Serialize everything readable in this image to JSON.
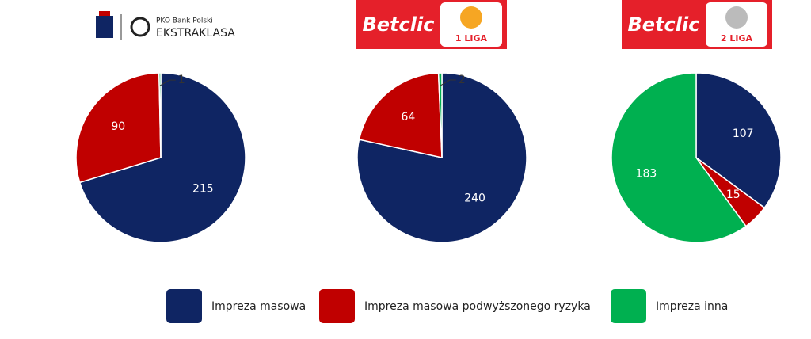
{
  "legend": {
    "items": [
      {
        "name": "Impreza masowa",
        "color": "#0f2563"
      },
      {
        "name": "Impreza masowa podwyższonego ryzyka",
        "color": "#c00000"
      },
      {
        "name": "Impreza inna",
        "color": "#00b050"
      }
    ]
  },
  "chart_data": [
    {
      "type": "pie",
      "logo": [
        "PKO Bank Polski",
        "EKSTRAKLASA"
      ],
      "values": [
        215,
        90,
        1
      ]
    },
    {
      "type": "pie",
      "logo": [
        "Betclic",
        "1 LIGA"
      ],
      "values": [
        240,
        64,
        2
      ]
    },
    {
      "type": "pie",
      "logo": [
        "Betclic",
        "2 LIGA"
      ],
      "values": [
        107,
        15,
        183
      ]
    }
  ]
}
